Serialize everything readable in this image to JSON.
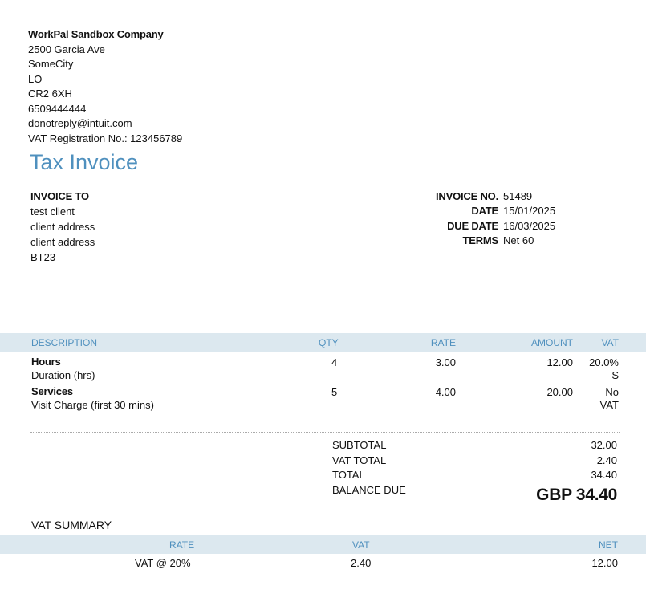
{
  "company": {
    "name": "WorkPal Sandbox Company",
    "address1": "2500 Garcia Ave",
    "city": "SomeCity",
    "region": "LO",
    "postcode": "CR2 6XH",
    "phone": "6509444444",
    "email": "donotreply@intuit.com",
    "vat_reg": "VAT Registration No.: 123456789"
  },
  "title": "Tax Invoice",
  "invoice_to": {
    "header": "INVOICE TO",
    "lines": [
      "test client",
      "client address",
      "client address",
      "BT23"
    ]
  },
  "meta": [
    {
      "label": "INVOICE NO.",
      "value": "51489"
    },
    {
      "label": "DATE",
      "value": "15/01/2025"
    },
    {
      "label": "DUE DATE",
      "value": "16/03/2025"
    },
    {
      "label": "TERMS",
      "value": "Net 60"
    }
  ],
  "table": {
    "headers": {
      "description": "DESCRIPTION",
      "qty": "QTY",
      "rate": "RATE",
      "amount": "AMOUNT",
      "vat": "VAT"
    },
    "rows": [
      {
        "name": "Hours",
        "desc": "Duration (hrs)",
        "qty": "4",
        "rate": "3.00",
        "amount": "12.00",
        "vat1": "20.0%",
        "vat2": "S"
      },
      {
        "name": "Services",
        "desc": "Visit Charge (first 30 mins)",
        "qty": "5",
        "rate": "4.00",
        "amount": "20.00",
        "vat1": "No",
        "vat2": "VAT"
      }
    ]
  },
  "totals": {
    "subtotal_label": "SUBTOTAL",
    "subtotal": "32.00",
    "vat_label": "VAT TOTAL",
    "vat": "2.40",
    "total_label": "TOTAL",
    "total": "34.40",
    "balance_label": "BALANCE DUE",
    "balance": "GBP 34.40"
  },
  "vat_summary": {
    "title": "VAT SUMMARY",
    "headers": {
      "rate": "RATE",
      "vat": "VAT",
      "net": "NET"
    },
    "row": {
      "rate": "VAT @ 20%",
      "vat": "2.40",
      "net": "12.00"
    }
  },
  "colors": {
    "accent": "#4f90be",
    "header_bg": "#dce8ef"
  }
}
